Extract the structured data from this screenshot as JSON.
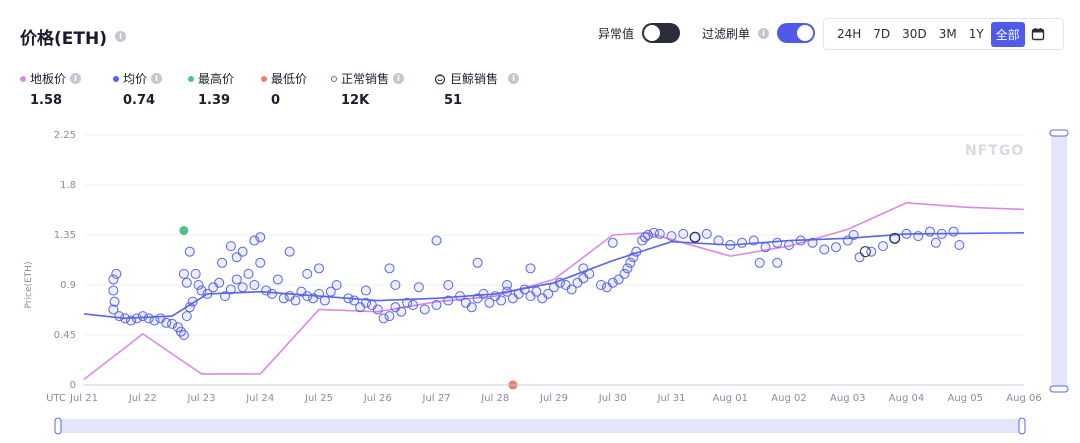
{
  "header": {
    "title": "价格(ETH)",
    "toggle_outlier_label": "异常值",
    "toggle_outlier_on": false,
    "toggle_filter_label": "过滤刷单",
    "toggle_filter_on": true,
    "ranges": [
      "24H",
      "7D",
      "30D",
      "3M",
      "1Y",
      "全部"
    ],
    "active_range": "全部"
  },
  "stats": [
    {
      "label": "地板价",
      "value": "1.58",
      "marker": "dot",
      "color": "#d98be6"
    },
    {
      "label": "均价",
      "value": "0.74",
      "marker": "dot",
      "color": "#5865e8"
    },
    {
      "label": "最高价",
      "value": "1.39",
      "marker": "dot",
      "color": "#4cc38a"
    },
    {
      "label": "最低价",
      "value": "0",
      "marker": "dot",
      "color": "#f07b6b"
    },
    {
      "label": "正常销售",
      "value": "12K",
      "marker": "hollow",
      "color": "#5865e8"
    },
    {
      "label": "巨鲸销售",
      "value": "51",
      "marker": "whale-icon",
      "color": "#2b2d3b"
    }
  ],
  "watermark": "NFTGO",
  "chart_data": {
    "type": "scatter",
    "ylabel": "Price(ETH)",
    "xlabel": "",
    "x_prefix": "UTC",
    "x_ticks": [
      "Jul 21",
      "Jul 22",
      "Jul 23",
      "Jul 24",
      "Jul 25",
      "Jul 26",
      "Jul 27",
      "Jul 28",
      "Jul 29",
      "Jul 30",
      "Jul 31",
      "Aug 01",
      "Aug 02",
      "Aug 03",
      "Aug 04",
      "Aug 05",
      "Aug 06"
    ],
    "y_ticks": [
      "0",
      "0.45",
      "0.9",
      "1.35",
      "1.8",
      "2.25"
    ],
    "ylim": [
      0,
      2.25
    ],
    "xlim_days": [
      0,
      16
    ],
    "floor_price_series": {
      "name": "地板价",
      "color": "#d98be6",
      "points": [
        [
          0,
          0.05
        ],
        [
          1.0,
          0.46
        ],
        [
          2.0,
          0.1
        ],
        [
          3.0,
          0.1
        ],
        [
          4.0,
          0.68
        ],
        [
          5.0,
          0.66
        ],
        [
          6.0,
          0.75
        ],
        [
          7.0,
          0.8
        ],
        [
          8.0,
          0.95
        ],
        [
          9.0,
          1.35
        ],
        [
          9.6,
          1.37
        ],
        [
          10.2,
          1.28
        ],
        [
          11.0,
          1.16
        ],
        [
          12.0,
          1.25
        ],
        [
          13.0,
          1.4
        ],
        [
          14.0,
          1.64
        ],
        [
          15.0,
          1.6
        ],
        [
          16.0,
          1.58
        ]
      ]
    },
    "avg_price_series": {
      "name": "均价",
      "color": "#5865e8",
      "points": [
        [
          0,
          0.64
        ],
        [
          0.7,
          0.6
        ],
        [
          1.5,
          0.62
        ],
        [
          2.1,
          0.82
        ],
        [
          3.0,
          0.84
        ],
        [
          4.0,
          0.8
        ],
        [
          5.0,
          0.76
        ],
        [
          6.0,
          0.78
        ],
        [
          7.0,
          0.82
        ],
        [
          8.0,
          0.92
        ],
        [
          9.0,
          1.12
        ],
        [
          10.0,
          1.29
        ],
        [
          11.0,
          1.26
        ],
        [
          12.0,
          1.3
        ],
        [
          13.0,
          1.32
        ],
        [
          14.0,
          1.36
        ],
        [
          16.0,
          1.37
        ]
      ]
    },
    "highest_point": {
      "x": 1.7,
      "y": 1.39,
      "color": "#4cc38a"
    },
    "lowest_point": {
      "x": 7.3,
      "y": 0.0,
      "color": "#f07b6b"
    },
    "normal_sales": [
      [
        0.5,
        0.95
      ],
      [
        0.55,
        1.0
      ],
      [
        0.5,
        0.85
      ],
      [
        0.52,
        0.75
      ],
      [
        0.5,
        0.68
      ],
      [
        0.6,
        0.62
      ],
      [
        0.7,
        0.6
      ],
      [
        0.8,
        0.58
      ],
      [
        0.9,
        0.6
      ],
      [
        1.0,
        0.62
      ],
      [
        1.1,
        0.6
      ],
      [
        1.2,
        0.58
      ],
      [
        1.3,
        0.6
      ],
      [
        1.4,
        0.56
      ],
      [
        1.5,
        0.55
      ],
      [
        1.6,
        0.52
      ],
      [
        1.65,
        0.48
      ],
      [
        1.7,
        0.45
      ],
      [
        1.75,
        0.62
      ],
      [
        1.8,
        0.7
      ],
      [
        1.85,
        0.75
      ],
      [
        1.7,
        1.0
      ],
      [
        1.75,
        0.92
      ],
      [
        1.8,
        1.2
      ],
      [
        1.9,
        1.0
      ],
      [
        1.95,
        0.9
      ],
      [
        2.0,
        0.85
      ],
      [
        2.1,
        0.82
      ],
      [
        2.2,
        0.88
      ],
      [
        2.3,
        0.92
      ],
      [
        2.4,
        0.8
      ],
      [
        2.5,
        0.86
      ],
      [
        2.6,
        0.95
      ],
      [
        2.7,
        0.88
      ],
      [
        2.8,
        1.0
      ],
      [
        2.9,
        0.9
      ],
      [
        3.0,
        1.1
      ],
      [
        3.1,
        0.85
      ],
      [
        2.5,
        1.25
      ],
      [
        2.7,
        1.2
      ],
      [
        2.9,
        1.3
      ],
      [
        3.0,
        1.33
      ],
      [
        2.6,
        1.15
      ],
      [
        2.35,
        1.1
      ],
      [
        3.2,
        0.82
      ],
      [
        3.4,
        0.78
      ],
      [
        3.5,
        0.8
      ],
      [
        3.6,
        0.76
      ],
      [
        3.7,
        0.84
      ],
      [
        3.8,
        0.8
      ],
      [
        3.9,
        0.78
      ],
      [
        4.0,
        0.82
      ],
      [
        4.1,
        0.76
      ],
      [
        4.2,
        0.84
      ],
      [
        3.5,
        1.2
      ],
      [
        3.8,
        1.0
      ],
      [
        4.0,
        1.05
      ],
      [
        4.3,
        0.9
      ],
      [
        3.3,
        0.95
      ],
      [
        4.5,
        0.78
      ],
      [
        4.6,
        0.76
      ],
      [
        4.7,
        0.7
      ],
      [
        4.8,
        0.74
      ],
      [
        4.9,
        0.72
      ],
      [
        5.0,
        0.68
      ],
      [
        5.1,
        0.6
      ],
      [
        5.2,
        0.62
      ],
      [
        5.3,
        0.7
      ],
      [
        5.4,
        0.66
      ],
      [
        5.5,
        0.74
      ],
      [
        4.8,
        0.85
      ],
      [
        5.2,
        1.05
      ],
      [
        5.3,
        0.9
      ],
      [
        5.6,
        0.72
      ],
      [
        5.8,
        0.68
      ],
      [
        6.0,
        0.72
      ],
      [
        6.2,
        0.76
      ],
      [
        6.4,
        0.8
      ],
      [
        6.5,
        0.74
      ],
      [
        6.6,
        0.7
      ],
      [
        6.7,
        0.78
      ],
      [
        6.8,
        0.82
      ],
      [
        6.9,
        0.74
      ],
      [
        6.0,
        1.3
      ],
      [
        6.7,
        1.1
      ],
      [
        6.2,
        0.9
      ],
      [
        5.7,
        0.88
      ],
      [
        7.0,
        0.8
      ],
      [
        7.1,
        0.76
      ],
      [
        7.2,
        0.84
      ],
      [
        7.3,
        0.78
      ],
      [
        7.4,
        0.82
      ],
      [
        7.5,
        0.86
      ],
      [
        7.6,
        0.8
      ],
      [
        7.7,
        0.84
      ],
      [
        7.8,
        0.78
      ],
      [
        7.9,
        0.82
      ],
      [
        7.6,
        1.05
      ],
      [
        7.2,
        0.9
      ],
      [
        8.0,
        0.88
      ],
      [
        8.1,
        0.92
      ],
      [
        8.2,
        0.9
      ],
      [
        8.3,
        0.86
      ],
      [
        8.4,
        0.92
      ],
      [
        8.5,
        0.96
      ],
      [
        8.6,
        1.0
      ],
      [
        8.8,
        0.9
      ],
      [
        8.9,
        0.88
      ],
      [
        9.0,
        0.92
      ],
      [
        9.1,
        0.95
      ],
      [
        9.2,
        1.0
      ],
      [
        9.25,
        1.05
      ],
      [
        9.3,
        1.1
      ],
      [
        9.35,
        1.15
      ],
      [
        9.4,
        1.2
      ],
      [
        9.5,
        1.3
      ],
      [
        9.55,
        1.33
      ],
      [
        9.6,
        1.35
      ],
      [
        9.7,
        1.37
      ],
      [
        9.8,
        1.36
      ],
      [
        8.5,
        1.05
      ],
      [
        9.0,
        1.28
      ],
      [
        10.0,
        1.34
      ],
      [
        10.2,
        1.36
      ],
      [
        10.4,
        1.33
      ],
      [
        10.6,
        1.36
      ],
      [
        10.8,
        1.3
      ],
      [
        11.0,
        1.26
      ],
      [
        11.2,
        1.28
      ],
      [
        11.4,
        1.3
      ],
      [
        11.6,
        1.24
      ],
      [
        11.8,
        1.28
      ],
      [
        11.5,
        1.1
      ],
      [
        11.8,
        1.1
      ],
      [
        12.0,
        1.26
      ],
      [
        12.2,
        1.3
      ],
      [
        12.4,
        1.28
      ],
      [
        12.6,
        1.22
      ],
      [
        12.8,
        1.24
      ],
      [
        13.0,
        1.3
      ],
      [
        13.1,
        1.35
      ],
      [
        13.2,
        1.15
      ],
      [
        13.4,
        1.2
      ],
      [
        13.6,
        1.25
      ],
      [
        13.8,
        1.32
      ],
      [
        14.0,
        1.36
      ],
      [
        14.2,
        1.34
      ],
      [
        14.4,
        1.38
      ],
      [
        14.6,
        1.36
      ],
      [
        14.8,
        1.38
      ],
      [
        14.9,
        1.26
      ],
      [
        14.5,
        1.28
      ]
    ],
    "whale_sales": [
      [
        10.4,
        1.33
      ],
      [
        13.3,
        1.2
      ],
      [
        13.8,
        1.32
      ]
    ],
    "slider": {
      "start": 0,
      "end": 1
    }
  }
}
